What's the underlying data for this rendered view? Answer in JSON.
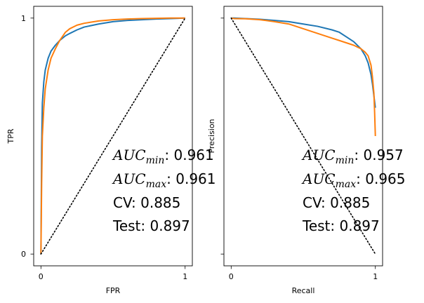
{
  "chart_data": [
    {
      "type": "line",
      "title": "",
      "xlabel": "FPR",
      "ylabel": "TPR",
      "xlim": [
        0,
        1
      ],
      "ylim": [
        0,
        1
      ],
      "xticks": [
        "0",
        "1"
      ],
      "yticks": [
        "0",
        "1"
      ],
      "colors": [
        "#1f77b4",
        "#ff7f0e",
        "#000000"
      ],
      "series": [
        {
          "x": [
            0,
            0.005,
            0.01,
            0.02,
            0.03,
            0.05,
            0.07,
            0.1,
            0.13,
            0.17,
            0.2,
            0.25,
            0.3,
            0.4,
            0.5,
            0.6,
            0.7,
            0.8,
            0.9,
            1.0
          ],
          "y": [
            0,
            0.45,
            0.64,
            0.73,
            0.78,
            0.83,
            0.86,
            0.885,
            0.905,
            0.925,
            0.935,
            0.95,
            0.962,
            0.975,
            0.985,
            0.99,
            0.993,
            0.996,
            0.998,
            1.0
          ]
        },
        {
          "x": [
            0,
            0.005,
            0.01,
            0.02,
            0.03,
            0.05,
            0.07,
            0.1,
            0.13,
            0.17,
            0.2,
            0.25,
            0.3,
            0.4,
            0.5,
            0.6,
            0.7,
            0.8,
            0.9,
            1.0
          ],
          "y": [
            0,
            0.3,
            0.5,
            0.62,
            0.7,
            0.78,
            0.83,
            0.87,
            0.905,
            0.94,
            0.955,
            0.97,
            0.978,
            0.988,
            0.993,
            0.996,
            0.998,
            0.999,
            1.0,
            1.0
          ]
        },
        {
          "x": [
            0,
            1
          ],
          "y": [
            0,
            1
          ],
          "style": "dotted"
        }
      ],
      "annotations": {
        "auc_min_label": "AUC",
        "auc_min_sub": "min",
        "auc_min_value": ": 0.961",
        "auc_max_label": "AUC",
        "auc_max_sub": "max",
        "auc_max_value": ": 0.961",
        "cv": "CV: 0.885",
        "test": "Test: 0.897"
      }
    },
    {
      "type": "line",
      "title": "",
      "xlabel": "Recall",
      "ylabel": "Precision",
      "xlim": [
        0,
        1
      ],
      "ylim": [
        0,
        1
      ],
      "xticks": [
        "0",
        "1"
      ],
      "yticks": [],
      "colors": [
        "#1f77b4",
        "#ff7f0e",
        "#000000"
      ],
      "series": [
        {
          "x": [
            0,
            0.02,
            0.1,
            0.2,
            0.3,
            0.4,
            0.5,
            0.6,
            0.7,
            0.75,
            0.8,
            0.85,
            0.9,
            0.93,
            0.95,
            0.97,
            0.98,
            0.99,
            1.0
          ],
          "y": [
            1.0,
            1.0,
            0.998,
            0.995,
            0.99,
            0.985,
            0.975,
            0.965,
            0.95,
            0.94,
            0.92,
            0.9,
            0.87,
            0.84,
            0.81,
            0.76,
            0.72,
            0.67,
            0.62
          ]
        },
        {
          "x": [
            0,
            0.02,
            0.1,
            0.2,
            0.3,
            0.4,
            0.5,
            0.6,
            0.7,
            0.75,
            0.8,
            0.85,
            0.9,
            0.93,
            0.95,
            0.97,
            0.98,
            0.99,
            0.995,
            1.0
          ],
          "y": [
            1.0,
            0.998,
            0.997,
            0.993,
            0.985,
            0.975,
            0.955,
            0.935,
            0.915,
            0.905,
            0.895,
            0.885,
            0.87,
            0.855,
            0.84,
            0.8,
            0.75,
            0.68,
            0.6,
            0.5
          ]
        },
        {
          "x": [
            0,
            1
          ],
          "y": [
            1,
            0
          ],
          "style": "dotted"
        }
      ],
      "annotations": {
        "auc_min_label": "AUC",
        "auc_min_sub": "min",
        "auc_min_value": ": 0.957",
        "auc_max_label": "AUC",
        "auc_max_sub": "max",
        "auc_max_value": ": 0.965",
        "cv": "CV: 0.885",
        "test": "Test: 0.897"
      }
    }
  ]
}
